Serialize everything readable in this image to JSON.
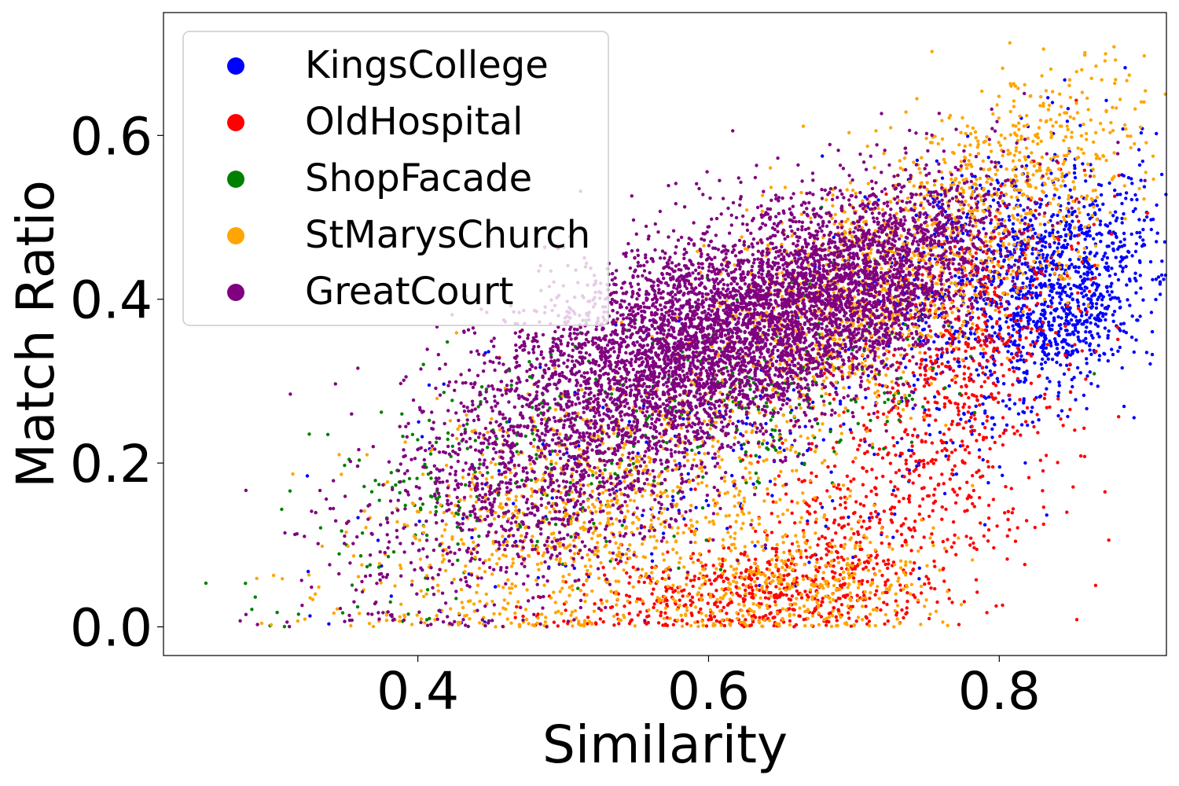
{
  "chart_data": {
    "type": "scatter",
    "title": "",
    "xlabel": "Similarity",
    "ylabel": "Match Ratio",
    "xlim": [
      0.225,
      0.915
    ],
    "ylim": [
      -0.035,
      0.75
    ],
    "xticks": [
      0.4,
      0.6,
      0.8
    ],
    "xtick_labels": [
      "0.4",
      "0.6",
      "0.8"
    ],
    "yticks": [
      0.0,
      0.2,
      0.4,
      0.6
    ],
    "ytick_labels": [
      "0.0",
      "0.2",
      "0.4",
      "0.6"
    ],
    "grid": false,
    "legend_position": "top-left",
    "series": [
      {
        "name": "KingsCollege",
        "color": "#0000ff",
        "count": 1700,
        "clusters": [
          {
            "w": 0.55,
            "mx": 0.845,
            "my": 0.4,
            "sx": 0.035,
            "sy": 0.07,
            "rho": 0.45
          },
          {
            "w": 0.3,
            "mx": 0.79,
            "my": 0.45,
            "sx": 0.04,
            "sy": 0.07,
            "rho": 0.4
          },
          {
            "w": 0.15,
            "mx": 0.62,
            "my": 0.22,
            "sx": 0.12,
            "sy": 0.1,
            "rho": 0.5
          }
        ]
      },
      {
        "name": "OldHospital",
        "color": "#ff0000",
        "count": 1500,
        "clusters": [
          {
            "w": 0.35,
            "mx": 0.78,
            "my": 0.34,
            "sx": 0.04,
            "sy": 0.09,
            "rho": 0.5
          },
          {
            "w": 0.35,
            "mx": 0.71,
            "my": 0.12,
            "sx": 0.06,
            "sy": 0.08,
            "rho": 0.4
          },
          {
            "w": 0.3,
            "mx": 0.62,
            "my": 0.04,
            "sx": 0.06,
            "sy": 0.03,
            "rho": 0.2
          }
        ]
      },
      {
        "name": "ShopFacade",
        "color": "#008000",
        "count": 500,
        "clusters": [
          {
            "w": 0.6,
            "mx": 0.62,
            "my": 0.28,
            "sx": 0.08,
            "sy": 0.07,
            "rho": 0.4
          },
          {
            "w": 0.4,
            "mx": 0.44,
            "my": 0.18,
            "sx": 0.07,
            "sy": 0.08,
            "rho": 0.5
          }
        ]
      },
      {
        "name": "StMarysChurch",
        "color": "#ffa500",
        "count": 3000,
        "clusters": [
          {
            "w": 0.35,
            "mx": 0.71,
            "my": 0.42,
            "sx": 0.06,
            "sy": 0.08,
            "rho": 0.5
          },
          {
            "w": 0.35,
            "mx": 0.52,
            "my": 0.15,
            "sx": 0.08,
            "sy": 0.09,
            "rho": 0.5
          },
          {
            "w": 0.15,
            "mx": 0.82,
            "my": 0.55,
            "sx": 0.04,
            "sy": 0.07,
            "rho": 0.4
          },
          {
            "w": 0.15,
            "mx": 0.66,
            "my": 0.05,
            "sx": 0.05,
            "sy": 0.04,
            "rho": 0.2
          }
        ]
      },
      {
        "name": "GreatCourt",
        "color": "#800080",
        "count": 7000,
        "clusters": [
          {
            "w": 0.55,
            "mx": 0.6,
            "my": 0.36,
            "sx": 0.07,
            "sy": 0.07,
            "rho": 0.45
          },
          {
            "w": 0.25,
            "mx": 0.71,
            "my": 0.42,
            "sx": 0.05,
            "sy": 0.07,
            "rho": 0.5
          },
          {
            "w": 0.2,
            "mx": 0.5,
            "my": 0.2,
            "sx": 0.07,
            "sy": 0.09,
            "rho": 0.5
          }
        ]
      }
    ]
  }
}
